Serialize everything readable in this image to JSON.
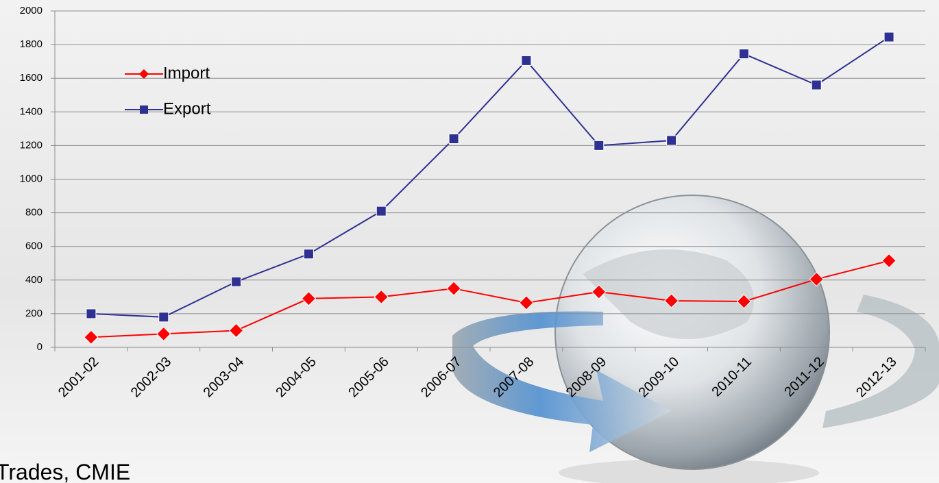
{
  "chart_data": {
    "type": "line",
    "categories": [
      "2001-02",
      "2002-03",
      "2003-04",
      "2004-05",
      "2005-06",
      "2006-07",
      "2007-08",
      "2008-09",
      "2009-10",
      "2010-11",
      "2011-12",
      "2012-13"
    ],
    "series": [
      {
        "name": "Import",
        "color": "#ff0000",
        "marker": "diamond",
        "values": [
          60,
          80,
          100,
          290,
          300,
          350,
          265,
          330,
          277,
          273,
          405,
          515
        ]
      },
      {
        "name": "Export",
        "color": "#2e3192",
        "marker": "square",
        "values": [
          200,
          180,
          390,
          555,
          810,
          1240,
          1705,
          1200,
          1230,
          1745,
          1560,
          1845
        ]
      }
    ],
    "ylim": [
      0,
      2000
    ],
    "yticks": [
      0,
      200,
      400,
      600,
      800,
      1000,
      1200,
      1400,
      1600,
      1800,
      2000
    ],
    "grid": true,
    "legend": "upper left",
    "source": "Trades, CMIE"
  }
}
